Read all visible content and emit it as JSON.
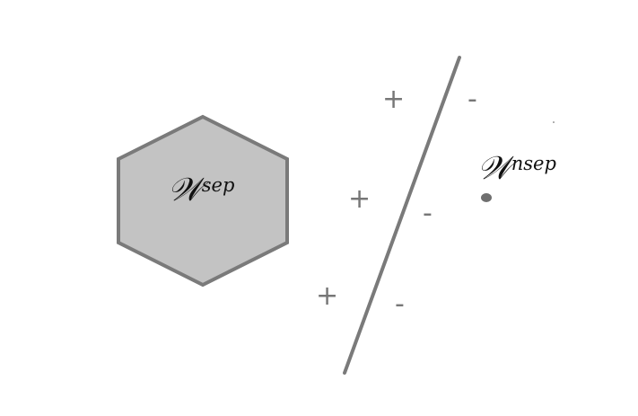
{
  "diagram": {
    "separable_set": {
      "symbol": "𝒲",
      "superscript": "sep"
    },
    "non_separable_set": {
      "symbol": "𝒲",
      "superscript": "nsep"
    },
    "signs": {
      "plus": "+",
      "minus": "-"
    },
    "colors": {
      "hexagon_fill": "#c3c3c3",
      "stroke": "#7a7a7a",
      "sign": "#777777",
      "text": "#111111"
    }
  }
}
